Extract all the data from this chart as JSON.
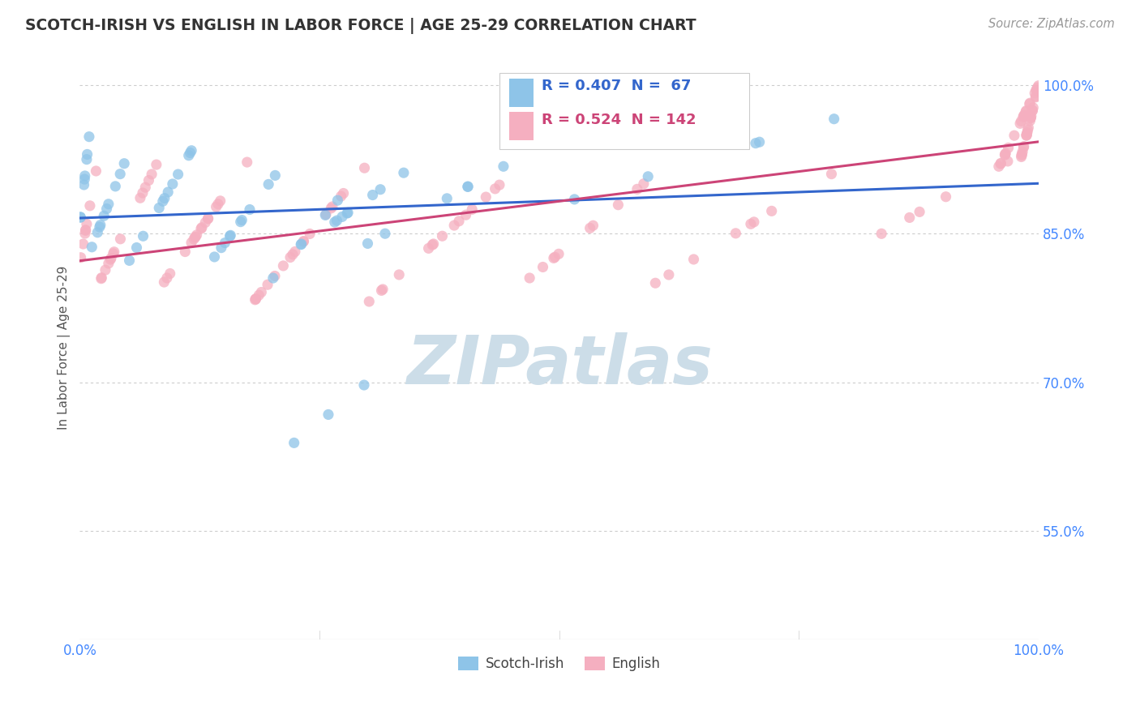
{
  "title": "SCOTCH-IRISH VS ENGLISH IN LABOR FORCE | AGE 25-29 CORRELATION CHART",
  "source_text": "Source: ZipAtlas.com",
  "ylabel": "In Labor Force | Age 25-29",
  "xlim": [
    0.0,
    1.0
  ],
  "ylim": [
    0.44,
    1.03
  ],
  "ytick_positions": [
    0.55,
    0.7,
    0.85,
    1.0
  ],
  "ytick_labels": [
    "55.0%",
    "70.0%",
    "85.0%",
    "100.0%"
  ],
  "xtick_positions": [
    0.0,
    1.0
  ],
  "xtick_labels": [
    "0.0%",
    "100.0%"
  ],
  "scotch_irish_color": "#8ec4e8",
  "english_color": "#f5afc0",
  "scotch_irish_line_color": "#3366cc",
  "english_line_color": "#cc4477",
  "background_color": "#ffffff",
  "watermark_text": "ZIPatlas",
  "watermark_color": "#ccdde8",
  "grid_color": "#cccccc",
  "tick_color": "#4488ff",
  "title_color": "#333333",
  "ylabel_color": "#555555",
  "legend_r1": "R = 0.407  N =  67",
  "legend_r2": "R = 0.524  N = 142",
  "legend_label1": "Scotch-Irish",
  "legend_label2": "English"
}
